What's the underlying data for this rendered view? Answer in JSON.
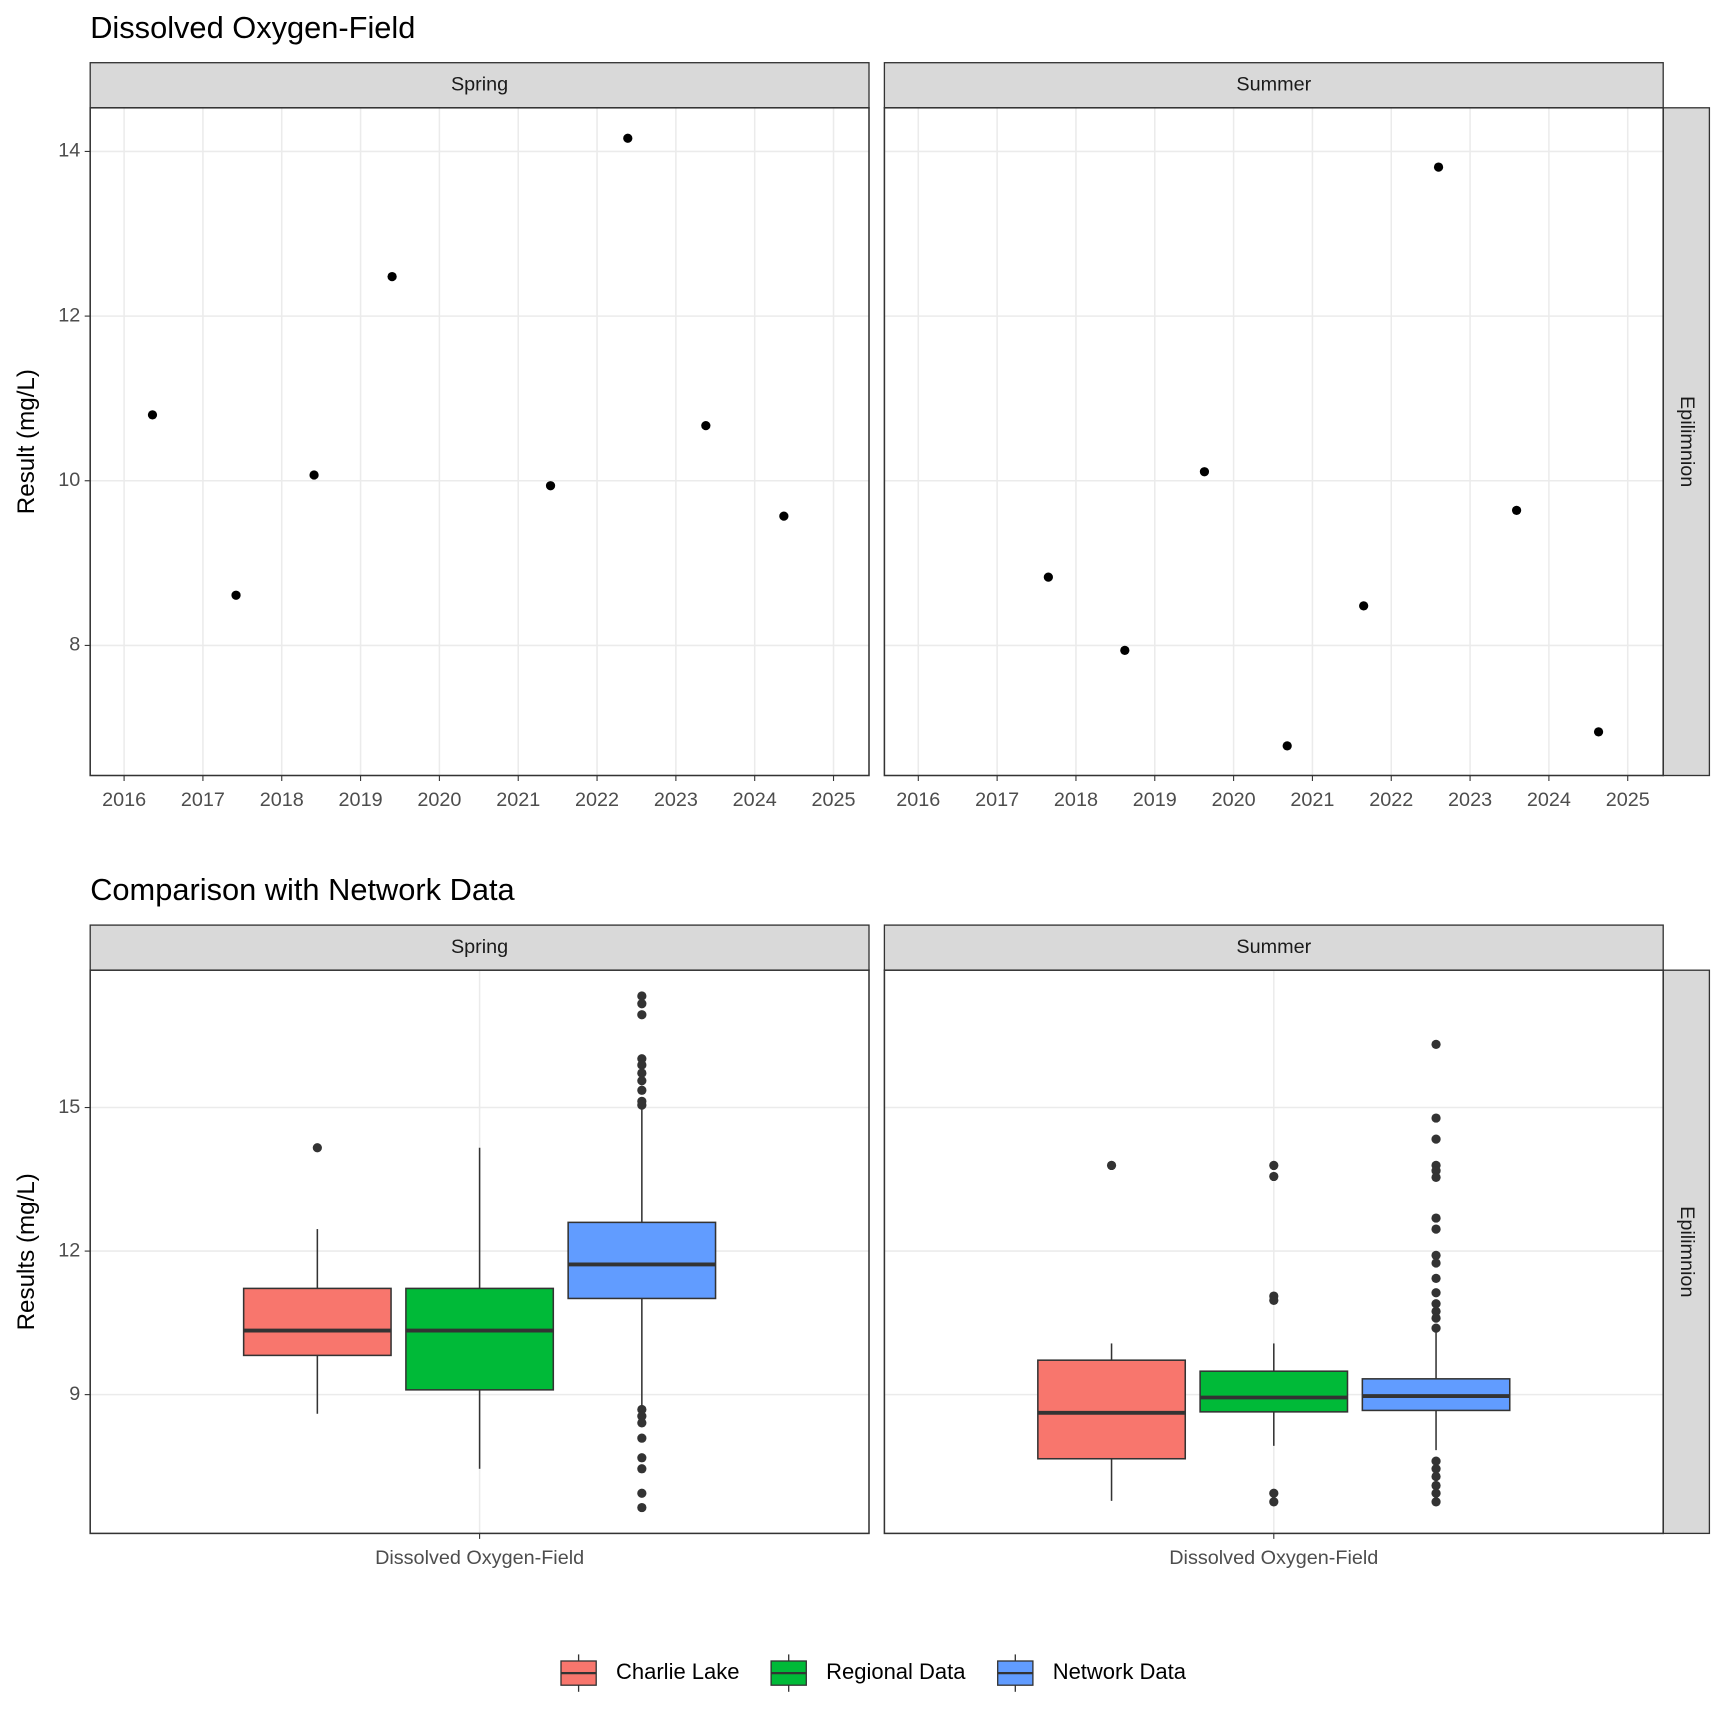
{
  "chart_data": [
    {
      "type": "scatter",
      "title": "Dissolved Oxygen-Field",
      "y_label": "Result (mg/L)",
      "row_strip": "Epilimnion",
      "xlim": [
        2015.57,
        2025.45
      ],
      "xticks": [
        2016,
        2017,
        2018,
        2019,
        2020,
        2021,
        2022,
        2023,
        2024,
        2025
      ],
      "ylim": [
        6.42,
        14.53
      ],
      "yticks": [
        8,
        10,
        12,
        14
      ],
      "grid": true,
      "color": "#000000",
      "panels": [
        {
          "name": "Spring",
          "x": [
            2016.36,
            2017.42,
            2018.41,
            2019.4,
            2021.41,
            2022.39,
            2023.38,
            2024.37
          ],
          "values": [
            10.8,
            8.61,
            10.07,
            12.48,
            9.94,
            14.16,
            10.67,
            9.57
          ]
        },
        {
          "name": "Summer",
          "x": [
            2017.65,
            2018.62,
            2019.63,
            2020.68,
            2021.65,
            2022.6,
            2023.59,
            2024.63
          ],
          "values": [
            8.83,
            7.94,
            10.11,
            6.78,
            8.48,
            13.81,
            9.64,
            6.95
          ]
        }
      ]
    },
    {
      "type": "boxplot",
      "title": "Comparison with Network Data",
      "y_label": "Results (mg/L)",
      "row_strip": "Epilimnion",
      "categories": [
        "Dissolved Oxygen-Field"
      ],
      "ylim": [
        6.1,
        17.87
      ],
      "yticks": [
        9,
        12,
        15
      ],
      "grid": true,
      "legend": "bottom",
      "series": [
        {
          "name": "Charlie Lake",
          "color": "#f8766d"
        },
        {
          "name": "Regional Data",
          "color": "#00ba38"
        },
        {
          "name": "Network Data",
          "color": "#619cff"
        }
      ],
      "panels": [
        {
          "name": "Spring",
          "boxes": [
            {
              "low": 8.6,
              "q1": 9.82,
              "median": 10.34,
              "q3": 11.22,
              "high": 12.46,
              "outliers": [
                14.16
              ]
            },
            {
              "low": 7.45,
              "q1": 9.1,
              "median": 10.34,
              "q3": 11.22,
              "high": 14.16,
              "outliers": []
            },
            {
              "low": 8.76,
              "q1": 11.01,
              "median": 11.72,
              "q3": 12.6,
              "high": 15.0,
              "outliers": [
                17.33,
                17.17,
                16.94,
                16.02,
                15.89,
                15.72,
                15.56,
                15.36,
                15.13,
                15.05,
                8.69,
                8.55,
                8.41,
                8.09,
                7.68,
                7.45,
                6.94,
                6.64
              ]
            }
          ]
        },
        {
          "name": "Summer",
          "boxes": [
            {
              "low": 6.78,
              "q1": 7.66,
              "median": 8.62,
              "q3": 9.72,
              "high": 10.07,
              "outliers": [
                13.79
              ]
            },
            {
              "low": 7.93,
              "q1": 8.64,
              "median": 8.94,
              "q3": 9.49,
              "high": 10.07,
              "outliers": [
                13.79,
                13.56,
                11.06,
                10.97,
                6.94,
                6.76
              ]
            },
            {
              "low": 7.84,
              "q1": 8.67,
              "median": 8.97,
              "q3": 9.33,
              "high": 10.44,
              "outliers": [
                16.32,
                14.78,
                14.34,
                13.79,
                13.68,
                13.54,
                12.69,
                12.46,
                11.91,
                11.75,
                11.43,
                11.13,
                10.9,
                10.74,
                10.6,
                10.39,
                7.61,
                7.45,
                7.29,
                7.1,
                6.94,
                6.76
              ]
            }
          ]
        }
      ]
    }
  ]
}
